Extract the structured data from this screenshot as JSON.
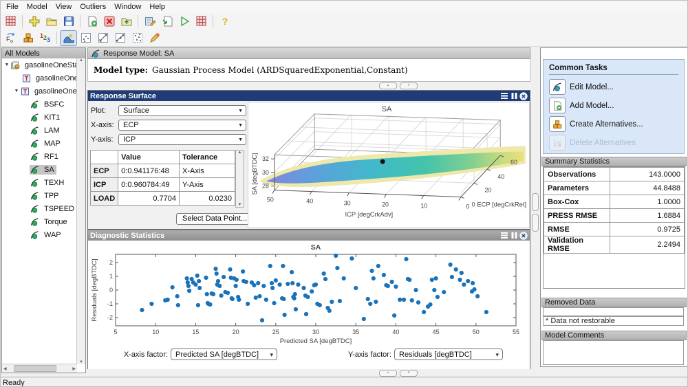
{
  "menu": {
    "items": [
      "File",
      "Model",
      "View",
      "Outliers",
      "Window",
      "Help"
    ]
  },
  "toolbar": {
    "row1_icons": [
      "view-grid",
      "new-project",
      "open-project",
      "save-project",
      "new-model",
      "delete",
      "up-one-level",
      "edit-data",
      "import-model",
      "run",
      "view-grid-2",
      "help"
    ],
    "row2_icons": [
      "update-fit",
      "alternatives",
      "stats-123",
      "surface-view",
      "image-view",
      "cross-section-view",
      "line-plot-view",
      "scatter-view",
      "outlier-pen"
    ]
  },
  "tree": {
    "header": "All Models",
    "items": [
      {
        "label": "gasolineOneStage"
      },
      {
        "label": "gasolineOneStage"
      },
      {
        "label": "gasolineOneStage"
      },
      {
        "label": "BSFC"
      },
      {
        "label": "KIT1"
      },
      {
        "label": "LAM"
      },
      {
        "label": "MAP"
      },
      {
        "label": "RF1"
      },
      {
        "label": "SA"
      },
      {
        "label": "TEXH"
      },
      {
        "label": "TPP"
      },
      {
        "label": "TSPEED"
      },
      {
        "label": "Torque"
      },
      {
        "label": "WAP"
      }
    ],
    "selected": "SA"
  },
  "header": {
    "title": "Response Model: SA",
    "model_type_label": "Model type:",
    "model_type_value": "Gaussian Process Model  (ARDSquaredExponential,Constant)"
  },
  "response_surface": {
    "title": "Response Surface",
    "plot_label": "Plot:",
    "plot_value": "Surface",
    "xaxis_label": "X-axis:",
    "xaxis_value": "ECP",
    "yaxis_label": "Y-axis:",
    "yaxis_value": "ICP",
    "table": {
      "columns": [
        "",
        "Value",
        "Tolerance"
      ],
      "rows": [
        {
          "name": "ECP",
          "value": "0:0.941176:48",
          "tolerance": "X-Axis"
        },
        {
          "name": "ICP",
          "value": "0:0.960784:49",
          "tolerance": "Y-Axis"
        },
        {
          "name": "LOAD",
          "value": "0.7704",
          "tolerance": "0.0230"
        }
      ]
    },
    "select_button": "Select Data Point..."
  },
  "diagnostics": {
    "title": "Diagnostic Statistics",
    "x_factor_label": "X-axis factor:",
    "x_factor_value": "Predicted SA [degBTDC]",
    "y_factor_label": "Y-axis factor:",
    "y_factor_value": "Residuals [degBTDC]"
  },
  "common_tasks": {
    "title": "Common Tasks",
    "items": [
      {
        "label": "Edit Model...",
        "enabled": true
      },
      {
        "label": "Add Model...",
        "enabled": true
      },
      {
        "label": "Create Alternatives...",
        "enabled": true
      },
      {
        "label": "Delete Alternatives",
        "enabled": false
      }
    ]
  },
  "summary_statistics": {
    "title": "Summary Statistics",
    "rows": [
      {
        "label": "Observations",
        "value": "143.0000"
      },
      {
        "label": "Parameters",
        "value": "44.8488"
      },
      {
        "label": "Box-Cox",
        "value": "1.0000"
      },
      {
        "label": "PRESS RMSE",
        "value": "1.6884"
      },
      {
        "label": "RMSE",
        "value": "0.9725"
      },
      {
        "label": "Validation RMSE",
        "value": "2.2494"
      }
    ]
  },
  "removed_data": {
    "title": "Removed Data",
    "note": "* Data not restorable"
  },
  "model_comments": {
    "title": "Model Comments"
  },
  "statusbar": {
    "text": "Ready"
  },
  "colors": {
    "titlebar_active": "#1d3c78",
    "titlebar_inactive": "#9e9e9e",
    "common_tasks_bg": "#d9e7f8",
    "tree_selection": "#c4c4c4",
    "scatter_point": "#1a72b8",
    "surface_colormap": [
      "#8287de",
      "#5f9fdc",
      "#41b8cc",
      "#44c4ab",
      "#83cf8f",
      "#ecdf7c"
    ]
  },
  "chart_data": [
    {
      "type": "surface",
      "title": "SA",
      "x": {
        "label": "ICP [degCrkAdv]",
        "ticks": [
          50,
          40,
          30,
          20,
          10,
          0
        ]
      },
      "y": {
        "label": "ECP [degCrkRet]",
        "ticks": [
          0,
          20,
          40,
          60
        ]
      },
      "z": {
        "label": "SA [degBTDC]",
        "ticks": [
          32,
          30,
          28
        ]
      },
      "colormap": "parula",
      "marker": "black data point near center of surface",
      "description": "Gaussian process response surface of SA over ICP (0-50) and ECP (0-60); low flat ribbon rising from blue/purple at left to teal then yellow at edges, SA approx 27-33 degBTDC"
    },
    {
      "type": "scatter",
      "title": "SA",
      "xlabel": "Predicted SA [degBTDC]",
      "ylabel": "Residuals [degBTDC]",
      "xlim": [
        5,
        55
      ],
      "ylim": [
        -2.6,
        2.6
      ],
      "xticks": [
        5,
        10,
        15,
        20,
        25,
        30,
        35,
        40,
        45,
        50,
        55
      ],
      "yticks": [
        2,
        1,
        0,
        -1,
        -2
      ],
      "point_color": "#1a72b8",
      "points": [
        [
          8.3,
          -1.45
        ],
        [
          9.5,
          -1.0
        ],
        [
          11.2,
          -0.75
        ],
        [
          11.5,
          -0.7
        ],
        [
          12.1,
          0.2
        ],
        [
          12.7,
          -0.45
        ],
        [
          12.8,
          -1.1
        ],
        [
          13.9,
          0.85
        ],
        [
          14.0,
          0.55
        ],
        [
          14.1,
          0.3
        ],
        [
          14.2,
          -0.05
        ],
        [
          14.5,
          0.8
        ],
        [
          14.7,
          0.55
        ],
        [
          15.0,
          0.4
        ],
        [
          15.2,
          1.05
        ],
        [
          15.3,
          -1.1
        ],
        [
          15.4,
          0.65
        ],
        [
          15.5,
          0.15
        ],
        [
          16.3,
          0.9
        ],
        [
          16.4,
          -0.3
        ],
        [
          16.5,
          -0.95
        ],
        [
          16.6,
          -1.0
        ],
        [
          16.8,
          -1.05
        ],
        [
          17.0,
          -0.25
        ],
        [
          17.2,
          -0.3
        ],
        [
          17.5,
          1.55
        ],
        [
          17.6,
          1.2
        ],
        [
          17.7,
          0.4
        ],
        [
          17.8,
          0.65
        ],
        [
          18.0,
          0.3
        ],
        [
          18.2,
          -0.4
        ],
        [
          18.5,
          0.95
        ],
        [
          18.7,
          -0.15
        ],
        [
          19.0,
          -0.2
        ],
        [
          19.3,
          1.5
        ],
        [
          19.4,
          0.9
        ],
        [
          19.5,
          -0.6
        ],
        [
          19.6,
          -0.65
        ],
        [
          19.8,
          0.85
        ],
        [
          20.0,
          0.3
        ],
        [
          20.1,
          0.75
        ],
        [
          20.3,
          -0.5
        ],
        [
          20.4,
          -0.7
        ],
        [
          20.9,
          1.35
        ],
        [
          21.0,
          0.65
        ],
        [
          21.3,
          0.6
        ],
        [
          21.5,
          -1.0
        ],
        [
          22.0,
          0.55
        ],
        [
          22.3,
          0.35
        ],
        [
          22.5,
          -0.55
        ],
        [
          22.8,
          0.5
        ],
        [
          23.0,
          -0.45
        ],
        [
          23.3,
          -2.2
        ],
        [
          23.5,
          0.3
        ],
        [
          23.8,
          -0.7
        ],
        [
          24.3,
          1.75
        ],
        [
          24.5,
          0.5
        ],
        [
          24.6,
          0.15
        ],
        [
          24.8,
          -0.95
        ],
        [
          25.0,
          0.7
        ],
        [
          25.5,
          0.4
        ],
        [
          25.8,
          -0.6
        ],
        [
          25.9,
          1.75
        ],
        [
          26.0,
          -0.65
        ],
        [
          26.1,
          -1.8
        ],
        [
          26.5,
          0.45
        ],
        [
          27.0,
          1.3
        ],
        [
          27.1,
          0.5
        ],
        [
          27.2,
          -0.5
        ],
        [
          27.3,
          -0.6
        ],
        [
          27.4,
          -0.3
        ],
        [
          27.5,
          -1.4
        ],
        [
          27.8,
          0.4
        ],
        [
          28.5,
          0.15
        ],
        [
          28.7,
          -0.4
        ],
        [
          28.8,
          -1.75
        ],
        [
          29.0,
          -0.5
        ],
        [
          29.5,
          -0.1
        ],
        [
          29.8,
          0.35
        ],
        [
          30.0,
          0.4
        ],
        [
          30.2,
          -1.0
        ],
        [
          30.5,
          -1.1
        ],
        [
          31.0,
          1.2
        ],
        [
          31.2,
          0.8
        ],
        [
          31.5,
          -1.3
        ],
        [
          31.7,
          -1.5
        ],
        [
          32.0,
          -0.85
        ],
        [
          32.5,
          2.5
        ],
        [
          32.7,
          1.6
        ],
        [
          33.0,
          -0.8
        ],
        [
          33.5,
          0.85
        ],
        [
          34.5,
          2.3
        ],
        [
          35.0,
          0.15
        ],
        [
          36.0,
          -2.1
        ],
        [
          36.5,
          -0.65
        ],
        [
          36.8,
          -1.0
        ],
        [
          37.0,
          1.4
        ],
        [
          37.2,
          0.85
        ],
        [
          37.5,
          -0.85
        ],
        [
          37.8,
          1.75
        ],
        [
          38.5,
          1.1
        ],
        [
          38.8,
          0.35
        ],
        [
          39.0,
          0.3
        ],
        [
          39.5,
          0.6
        ],
        [
          39.8,
          -1.85
        ],
        [
          40.0,
          0.25
        ],
        [
          40.5,
          -0.7
        ],
        [
          41.0,
          -0.7
        ],
        [
          41.3,
          2.25
        ],
        [
          41.5,
          0.8
        ],
        [
          41.7,
          0.75
        ],
        [
          42.0,
          -0.75
        ],
        [
          42.5,
          0.0
        ],
        [
          42.8,
          -0.9
        ],
        [
          43.5,
          -1.6
        ],
        [
          44.0,
          -1.2
        ],
        [
          44.3,
          -1.05
        ],
        [
          44.5,
          0.75
        ],
        [
          44.8,
          0.0
        ],
        [
          45.0,
          0.85
        ],
        [
          45.2,
          -0.5
        ],
        [
          46.0,
          -0.15
        ],
        [
          46.8,
          1.85
        ],
        [
          47.0,
          0.95
        ],
        [
          47.5,
          1.5
        ],
        [
          48.0,
          0.75
        ],
        [
          48.2,
          1.25
        ],
        [
          48.5,
          0.4
        ],
        [
          49.0,
          0.65
        ],
        [
          49.5,
          -0.1
        ],
        [
          49.6,
          0.5
        ],
        [
          49.8,
          0.05
        ],
        [
          50.2,
          -0.45
        ],
        [
          51.3,
          -1.6
        ]
      ]
    }
  ]
}
